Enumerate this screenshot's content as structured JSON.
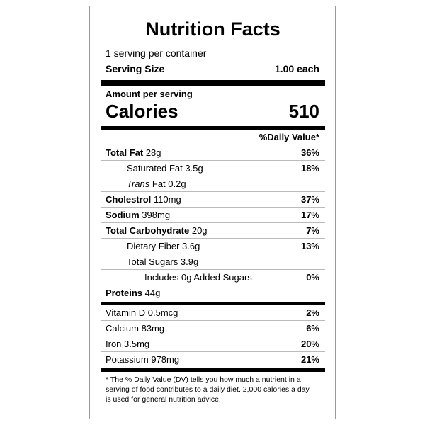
{
  "header": {
    "title": "Nutrition Facts",
    "servings": "1 serving per container",
    "serving_size_label": "Serving Size",
    "serving_size": "1.00 each"
  },
  "calories": {
    "amount_label": "Amount per serving",
    "label": "Calories",
    "value": "510"
  },
  "dv_header": "%Daily Value*",
  "nutrients": [
    {
      "name": "Total Fat",
      "amount": "28g",
      "dv": "36%"
    },
    {
      "name": "Saturated Fat",
      "amount": "3.5g",
      "dv": "18%"
    },
    {
      "name": "Trans",
      "amount": "Fat 0.2g"
    },
    {
      "name": "Cholestrol",
      "amount": "110mg",
      "dv": "37%"
    },
    {
      "name": "Sodium",
      "amount": "398mg",
      "dv": "17%"
    },
    {
      "name": "Total Carbohydrate",
      "amount": "20g",
      "dv": "7%"
    },
    {
      "name": "Dietary Fiber",
      "amount": "3.6g",
      "dv": "13%"
    },
    {
      "name": "Total Sugars",
      "amount": "3.9g"
    },
    {
      "name": "Includes 0g Added Sugars",
      "dv": "0%"
    },
    {
      "name": "Proteins",
      "amount": "44g"
    }
  ],
  "vitamins": [
    {
      "name": "Vitamin D",
      "amount": "0.5mcg",
      "dv": "2%"
    },
    {
      "name": "Calcium",
      "amount": "83mg",
      "dv": "6%"
    },
    {
      "name": "Iron",
      "amount": "3.5mg",
      "dv": "20%"
    },
    {
      "name": "Potassium",
      "amount": "978mg",
      "dv": "21%"
    }
  ],
  "footnote": "* The % Daily Value (DV) tells you how much a nutrient in a serving of food contributes to a daily diet. 2,000 calories a day is used for general nutrition advice."
}
